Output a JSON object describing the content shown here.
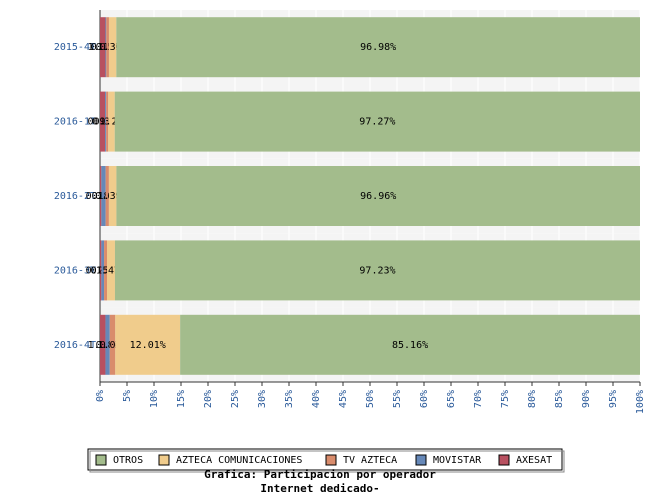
{
  "chart_data": {
    "type": "stacked-barh",
    "title": "Grafica: Participacion por operador",
    "subtitle": "Internet dedicado-",
    "categories": [
      "2015-4T",
      "2016-1T",
      "2016-2T",
      "2016-3T",
      "2016-4T"
    ],
    "series": [
      {
        "name": "OTROS",
        "color": "#a3bc8c",
        "values": [
          96.98,
          97.27,
          96.96,
          97.23,
          85.16
        ],
        "value_labels": [
          "96.98%",
          "97.27%",
          "96.96%",
          "97.23%",
          "85.16%"
        ]
      },
      {
        "name": "AZTECA COMUNICACIONES",
        "color": "#f0cc8c",
        "values": [
          1.36,
          1.2,
          1.39,
          1.47,
          12.01
        ],
        "value_labels": [
          "1.36%",
          "1.2%",
          "1.39%",
          "1.47%",
          "12.01%"
        ]
      },
      {
        "name": "TV AZTECA",
        "color": "#d98c6c",
        "values": [
          0.5,
          0.39,
          0.6,
          0.55,
          1.02
        ],
        "value_labels": [
          "0.5%",
          "0.39%",
          "0.6%",
          "0.55%",
          "1.02%"
        ]
      },
      {
        "name": "MOVISTAR",
        "color": "#6688b8",
        "values": [
          0.15,
          0.2,
          0.8,
          0.5,
          0.8
        ],
        "value_labels": [
          "0.15%",
          "0.2%",
          "0.8%",
          "0.5%",
          "0.8%"
        ]
      },
      {
        "name": "AXESAT",
        "color": "#b85060",
        "values": [
          1.01,
          0.94,
          0.25,
          0.25,
          1.01
        ],
        "value_labels": [
          "1.01%",
          "0.94%",
          "0.25%",
          "0.25%",
          "1.01%"
        ]
      }
    ],
    "xlim": [
      0,
      100
    ],
    "xticks": [
      {
        "value": 0,
        "label": "0%"
      },
      {
        "value": 5,
        "label": "5%"
      },
      {
        "value": 10,
        "label": "10%"
      },
      {
        "value": 15,
        "label": "15%"
      },
      {
        "value": 20,
        "label": "20%"
      },
      {
        "value": 25,
        "label": "25%"
      },
      {
        "value": 30,
        "label": "30%"
      },
      {
        "value": 35,
        "label": "35%"
      },
      {
        "value": 40,
        "label": "40%"
      },
      {
        "value": 45,
        "label": "45%"
      },
      {
        "value": 50,
        "label": "50%"
      },
      {
        "value": 55,
        "label": "55%"
      },
      {
        "value": 60,
        "label": "60%"
      },
      {
        "value": 65,
        "label": "65%"
      },
      {
        "value": 70,
        "label": "70%"
      },
      {
        "value": 75,
        "label": "75%"
      },
      {
        "value": 80,
        "label": "80%"
      },
      {
        "value": 85,
        "label": "85%"
      },
      {
        "value": 90,
        "label": "90%"
      },
      {
        "value": 95,
        "label": "95%"
      },
      {
        "value": 100,
        "label": "100%"
      }
    ],
    "grid": true
  }
}
